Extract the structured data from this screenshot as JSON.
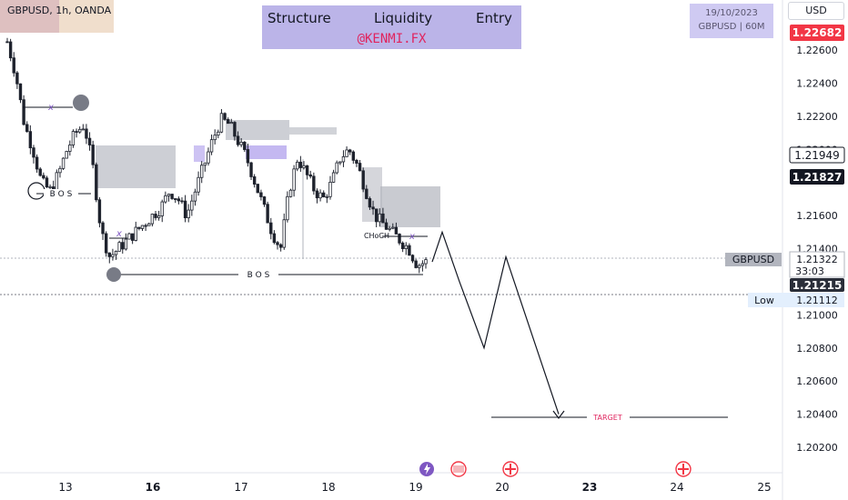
{
  "header": {
    "symbol": "GBPUSD, 1h, OANDA",
    "title_items": [
      "Structure",
      "Liquidity",
      "Entry"
    ],
    "watermark": "@KENMI.FX",
    "date": "19/10/2023",
    "date_symbol": "GBPUSD | 60M",
    "currency": "USD"
  },
  "axis": {
    "y_ticks": [
      "1.20200",
      "1.20400",
      "1.20600",
      "1.20800",
      "1.21000",
      "1.21400",
      "1.21600",
      "1.22000",
      "1.22200",
      "1.22400",
      "1.22600"
    ],
    "x_ticks": [
      "13",
      "16",
      "17",
      "18",
      "19",
      "20",
      "23",
      "24",
      "25"
    ],
    "bold_x_ticks": [
      "16",
      "23"
    ]
  },
  "price_labels": {
    "top": "1.22682",
    "high_level": "1.21949",
    "mid_level": "1.21827",
    "symbol_tag": "GBPUSD",
    "current": "1.21322",
    "countdown": "33:03",
    "last": "1.21215",
    "low_label": "Low",
    "low_value": "1.21112"
  },
  "annotations": {
    "bos": "B O S",
    "choch": "CHoCH",
    "x_mark": "x",
    "target": "TARGET"
  },
  "colors": {
    "accent_red": "#f23645",
    "target_red": "#e0245e",
    "zone_gray": "#b2b5be",
    "zone_purple": "#9c88e8",
    "candle": "#1e222d"
  },
  "chart_data": {
    "type": "candlestick",
    "symbol": "GBPUSD",
    "timeframe": "1h",
    "ylim": [
      1.201,
      1.2275
    ],
    "x": [
      "13",
      "16",
      "17",
      "18",
      "19",
      "20",
      "23",
      "24",
      "25"
    ],
    "close_path": [
      1.2265,
      1.2245,
      1.2215,
      1.22,
      1.218,
      1.2175,
      1.2185,
      1.22,
      1.221,
      1.2215,
      1.219,
      1.215,
      1.2135,
      1.214,
      1.2145,
      1.215,
      1.2155,
      1.216,
      1.2165,
      1.2175,
      1.217,
      1.216,
      1.2175,
      1.219,
      1.2205,
      1.2218,
      1.2215,
      1.2205,
      1.2195,
      1.218,
      1.2165,
      1.215,
      1.214,
      1.2175,
      1.2195,
      1.2185,
      1.2175,
      1.217,
      1.218,
      1.2195,
      1.22,
      1.219,
      1.2175,
      1.216,
      1.2155,
      1.215,
      1.2145,
      1.214,
      1.213,
      1.2132
    ],
    "projection": [
      1.2132,
      1.215,
      1.212,
      1.208,
      1.2135,
      1.204
    ],
    "target": 1.204,
    "bos_levels": [
      1.2173,
      1.2126
    ]
  }
}
